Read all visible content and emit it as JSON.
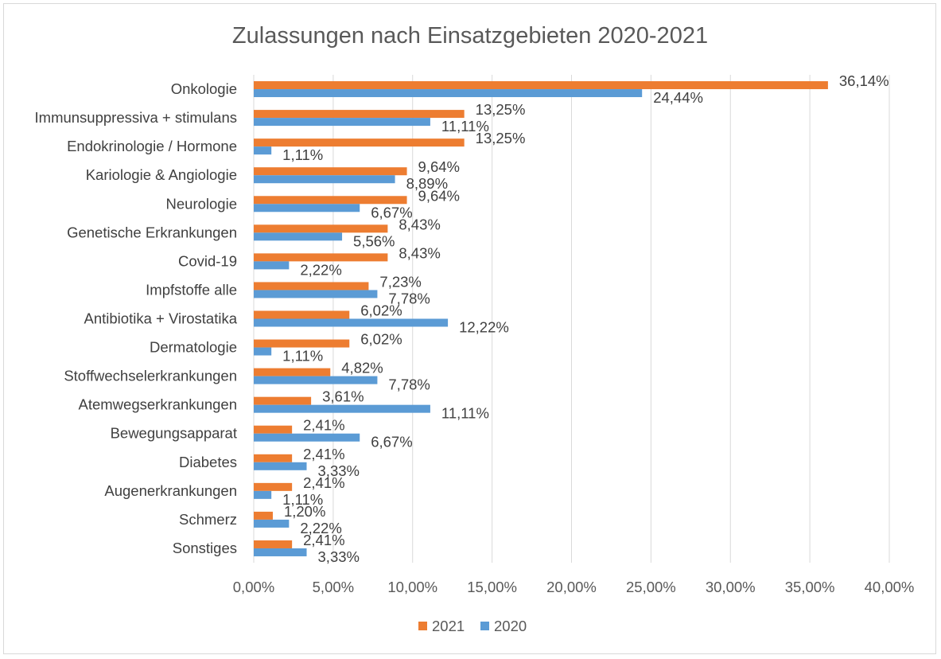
{
  "chart_data": {
    "type": "bar",
    "orientation": "horizontal",
    "title": "Zulassungen nach Einsatzgebieten 2020-2021",
    "xlabel": "",
    "ylabel": "",
    "xlim": [
      0,
      40
    ],
    "xticks": [
      "0,00%",
      "5,00%",
      "10,00%",
      "15,00%",
      "20,00%",
      "25,00%",
      "30,00%",
      "35,00%",
      "40,00%"
    ],
    "grid": "vertical",
    "legend_position": "bottom",
    "categories": [
      "Onkologie",
      "Immunsuppressiva + stimulans",
      "Endokrinologie / Hormone",
      "Kariologie & Angiologie",
      "Neurologie",
      "Genetische Erkrankungen",
      "Covid-19",
      "Impfstoffe alle",
      "Antibiotika + Virostatika",
      "Dermatologie",
      "Stoffwechselerkrankungen",
      "Atemwegserkrankungen",
      "Bewegungsapparat",
      "Diabetes",
      "Augenerkrankungen",
      "Schmerz",
      "Sonstiges"
    ],
    "series": [
      {
        "name": "2021",
        "color": "#ed7d31",
        "values": [
          36.14,
          13.25,
          13.25,
          9.64,
          9.64,
          8.43,
          8.43,
          7.23,
          6.02,
          6.02,
          4.82,
          3.61,
          2.41,
          2.41,
          2.41,
          1.2,
          2.41
        ],
        "labels": [
          "36,14%",
          "13,25%",
          "13,25%",
          "9,64%",
          "9,64%",
          "8,43%",
          "8,43%",
          "7,23%",
          "6,02%",
          "6,02%",
          "4,82%",
          "3,61%",
          "2,41%",
          "2,41%",
          "2,41%",
          "1,20%",
          "2,41%"
        ]
      },
      {
        "name": "2020",
        "color": "#5b9bd5",
        "values": [
          24.44,
          11.11,
          1.11,
          8.89,
          6.67,
          5.56,
          2.22,
          7.78,
          12.22,
          1.11,
          7.78,
          11.11,
          6.67,
          3.33,
          1.11,
          2.22,
          3.33
        ],
        "labels": [
          "24,44%",
          "11,11%",
          "1,11%",
          "8,89%",
          "6,67%",
          "5,56%",
          "2,22%",
          "7,78%",
          "12,22%",
          "1,11%",
          "7,78%",
          "11,11%",
          "6,67%",
          "3,33%",
          "1,11%",
          "2,22%",
          "3,33%"
        ]
      }
    ]
  }
}
